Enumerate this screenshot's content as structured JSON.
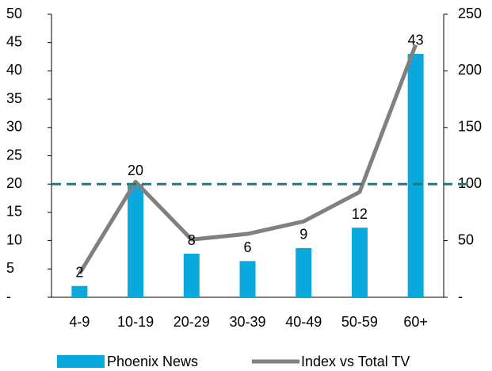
{
  "chart_data": {
    "type": "bar",
    "categories": [
      "4-9",
      "10-19",
      "20-29",
      "30-39",
      "40-49",
      "50-59",
      "60+"
    ],
    "series": [
      {
        "name": "Phoenix News",
        "color": "#0aa9dd",
        "type": "bar",
        "values": [
          2,
          20,
          7.7,
          6.4,
          8.7,
          12.3,
          43
        ],
        "value_labels": [
          "2",
          "20",
          "8",
          "6",
          "9",
          "12",
          "43"
        ]
      },
      {
        "name": "Index vs Total TV",
        "color": "#808080",
        "type": "line",
        "axis": "y2",
        "values": [
          21,
          102,
          51,
          56,
          67,
          93,
          223
        ]
      }
    ],
    "ylim": [
      0,
      50
    ],
    "yticks": [
      {
        "value": 0,
        "label": "-"
      },
      5,
      10,
      15,
      20,
      25,
      30,
      35,
      40,
      45,
      50
    ],
    "y2lim": [
      0,
      250
    ],
    "y2ticks": [
      {
        "value": 0,
        "label": "-"
      },
      50,
      100,
      150,
      200,
      250
    ],
    "reference_line": {
      "value": 100,
      "axis": "y2",
      "color": "#1f7a80",
      "dashed": true
    },
    "legend": "bottom"
  }
}
